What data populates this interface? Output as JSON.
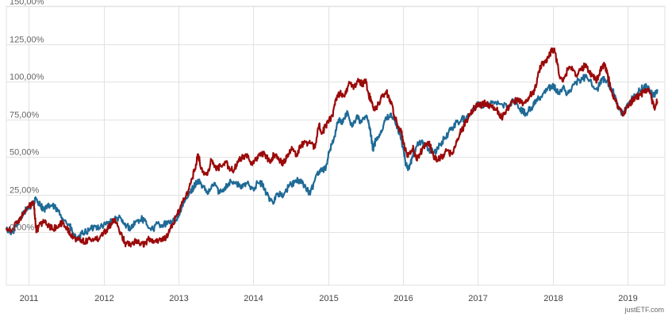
{
  "credit": "justETF.com",
  "colors": {
    "series_0": "#1f6a96",
    "series_1": "#9b0a0a",
    "grid": "#e2e2e2",
    "axis_text": "#555555"
  },
  "chart_data": {
    "type": "line",
    "title": "",
    "xlabel": "",
    "ylabel": "",
    "x_unit": "year",
    "xlim": [
      2010.7,
      2019.5
    ],
    "ylim": [
      -0.35,
      1.5
    ],
    "y_tick_values": [
      0,
      0.25,
      0.5,
      0.75,
      1.0,
      1.25,
      1.5
    ],
    "y_tick_labels": [
      "0,00%",
      "25,00%",
      "50,00%",
      "75,00%",
      "100,00%",
      "125,00%",
      "150,00%"
    ],
    "x_tick_values": [
      2011,
      2012,
      2013,
      2014,
      2015,
      2016,
      2017,
      2018,
      2019
    ],
    "x_tick_labels": [
      "2011",
      "2012",
      "2013",
      "2014",
      "2015",
      "2016",
      "2017",
      "2018",
      "2019"
    ],
    "grid": true,
    "legend": "none",
    "series": [
      {
        "color": "#1f6a96",
        "points": [
          [
            2010.7,
            0.02
          ],
          [
            2010.78,
            0.0
          ],
          [
            2010.86,
            0.06
          ],
          [
            2010.94,
            0.14
          ],
          [
            2011.02,
            0.17
          ],
          [
            2011.06,
            0.2
          ],
          [
            2011.1,
            0.22
          ],
          [
            2011.16,
            0.18
          ],
          [
            2011.2,
            0.15
          ],
          [
            2011.26,
            0.17
          ],
          [
            2011.3,
            0.18
          ],
          [
            2011.36,
            0.16
          ],
          [
            2011.42,
            0.12
          ],
          [
            2011.48,
            0.08
          ],
          [
            2011.55,
            0.04
          ],
          [
            2011.6,
            -0.02
          ],
          [
            2011.66,
            -0.05
          ],
          [
            2011.72,
            0.0
          ],
          [
            2011.8,
            0.01
          ],
          [
            2011.88,
            0.04
          ],
          [
            2011.96,
            0.04
          ],
          [
            2012.05,
            0.06
          ],
          [
            2012.1,
            0.07
          ],
          [
            2012.2,
            0.1
          ],
          [
            2012.28,
            0.05
          ],
          [
            2012.36,
            0.03
          ],
          [
            2012.43,
            0.07
          ],
          [
            2012.52,
            0.09
          ],
          [
            2012.58,
            0.05
          ],
          [
            2012.66,
            0.02
          ],
          [
            2012.72,
            0.06
          ],
          [
            2012.78,
            0.05
          ],
          [
            2012.88,
            0.06
          ],
          [
            2012.96,
            0.08
          ],
          [
            2013.02,
            0.13
          ],
          [
            2013.08,
            0.2
          ],
          [
            2013.14,
            0.25
          ],
          [
            2013.2,
            0.3
          ],
          [
            2013.26,
            0.35
          ],
          [
            2013.32,
            0.3
          ],
          [
            2013.4,
            0.26
          ],
          [
            2013.48,
            0.33
          ],
          [
            2013.55,
            0.26
          ],
          [
            2013.62,
            0.3
          ],
          [
            2013.7,
            0.34
          ],
          [
            2013.78,
            0.32
          ],
          [
            2013.86,
            0.3
          ],
          [
            2013.92,
            0.33
          ],
          [
            2014.0,
            0.29
          ],
          [
            2014.06,
            0.33
          ],
          [
            2014.12,
            0.32
          ],
          [
            2014.18,
            0.25
          ],
          [
            2014.26,
            0.2
          ],
          [
            2014.32,
            0.26
          ],
          [
            2014.4,
            0.24
          ],
          [
            2014.48,
            0.31
          ],
          [
            2014.55,
            0.33
          ],
          [
            2014.62,
            0.35
          ],
          [
            2014.7,
            0.3
          ],
          [
            2014.76,
            0.25
          ],
          [
            2014.84,
            0.38
          ],
          [
            2014.9,
            0.42
          ],
          [
            2014.96,
            0.42
          ],
          [
            2015.02,
            0.54
          ],
          [
            2015.08,
            0.63
          ],
          [
            2015.14,
            0.75
          ],
          [
            2015.2,
            0.73
          ],
          [
            2015.26,
            0.8
          ],
          [
            2015.32,
            0.7
          ],
          [
            2015.38,
            0.77
          ],
          [
            2015.44,
            0.73
          ],
          [
            2015.52,
            0.77
          ],
          [
            2015.56,
            0.68
          ],
          [
            2015.6,
            0.55
          ],
          [
            2015.64,
            0.62
          ],
          [
            2015.7,
            0.66
          ],
          [
            2015.76,
            0.74
          ],
          [
            2015.84,
            0.79
          ],
          [
            2015.9,
            0.72
          ],
          [
            2015.96,
            0.66
          ],
          [
            2016.0,
            0.57
          ],
          [
            2016.04,
            0.45
          ],
          [
            2016.08,
            0.42
          ],
          [
            2016.12,
            0.49
          ],
          [
            2016.18,
            0.57
          ],
          [
            2016.26,
            0.61
          ],
          [
            2016.34,
            0.55
          ],
          [
            2016.42,
            0.53
          ],
          [
            2016.5,
            0.58
          ],
          [
            2016.56,
            0.63
          ],
          [
            2016.64,
            0.68
          ],
          [
            2016.7,
            0.72
          ],
          [
            2016.78,
            0.75
          ],
          [
            2016.86,
            0.76
          ],
          [
            2016.94,
            0.82
          ],
          [
            2017.0,
            0.85
          ],
          [
            2017.1,
            0.85
          ],
          [
            2017.2,
            0.87
          ],
          [
            2017.3,
            0.85
          ],
          [
            2017.4,
            0.83
          ],
          [
            2017.48,
            0.88
          ],
          [
            2017.56,
            0.82
          ],
          [
            2017.64,
            0.79
          ],
          [
            2017.72,
            0.83
          ],
          [
            2017.78,
            0.88
          ],
          [
            2017.84,
            0.9
          ],
          [
            2017.92,
            0.94
          ],
          [
            2018.0,
            0.98
          ],
          [
            2018.04,
            0.95
          ],
          [
            2018.08,
            0.92
          ],
          [
            2018.14,
            0.96
          ],
          [
            2018.2,
            0.92
          ],
          [
            2018.28,
            0.98
          ],
          [
            2018.36,
            1.01
          ],
          [
            2018.44,
            1.03
          ],
          [
            2018.52,
            0.99
          ],
          [
            2018.6,
            0.95
          ],
          [
            2018.66,
            1.02
          ],
          [
            2018.72,
            1.0
          ],
          [
            2018.78,
            0.96
          ],
          [
            2018.82,
            0.92
          ],
          [
            2018.86,
            0.85
          ],
          [
            2018.92,
            0.78
          ],
          [
            2018.96,
            0.8
          ],
          [
            2019.02,
            0.85
          ],
          [
            2019.08,
            0.9
          ],
          [
            2019.14,
            0.93
          ],
          [
            2019.2,
            0.96
          ],
          [
            2019.26,
            0.97
          ],
          [
            2019.32,
            0.92
          ],
          [
            2019.36,
            0.91
          ],
          [
            2019.4,
            0.95
          ]
        ]
      },
      {
        "color": "#9b0a0a",
        "points": [
          [
            2010.7,
            0.03
          ],
          [
            2010.78,
            0.02
          ],
          [
            2010.86,
            0.08
          ],
          [
            2010.94,
            0.13
          ],
          [
            2011.02,
            0.18
          ],
          [
            2011.06,
            0.2
          ],
          [
            2011.08,
            0.12
          ],
          [
            2011.1,
            0.0
          ],
          [
            2011.14,
            0.05
          ],
          [
            2011.2,
            0.07
          ],
          [
            2011.26,
            0.05
          ],
          [
            2011.32,
            0.02
          ],
          [
            2011.4,
            0.05
          ],
          [
            2011.46,
            0.06
          ],
          [
            2011.52,
            0.02
          ],
          [
            2011.56,
            -0.02
          ],
          [
            2011.62,
            -0.04
          ],
          [
            2011.7,
            -0.05
          ],
          [
            2011.76,
            -0.06
          ],
          [
            2011.82,
            -0.04
          ],
          [
            2011.9,
            -0.05
          ],
          [
            2011.96,
            -0.02
          ],
          [
            2012.04,
            0.02
          ],
          [
            2012.1,
            0.06
          ],
          [
            2012.14,
            0.08
          ],
          [
            2012.2,
            0.03
          ],
          [
            2012.26,
            -0.04
          ],
          [
            2012.3,
            -0.08
          ],
          [
            2012.38,
            -0.07
          ],
          [
            2012.44,
            -0.05
          ],
          [
            2012.5,
            -0.08
          ],
          [
            2012.56,
            -0.07
          ],
          [
            2012.62,
            -0.04
          ],
          [
            2012.68,
            -0.06
          ],
          [
            2012.74,
            -0.05
          ],
          [
            2012.8,
            -0.04
          ],
          [
            2012.86,
            -0.02
          ],
          [
            2012.92,
            0.05
          ],
          [
            2012.98,
            0.12
          ],
          [
            2013.04,
            0.18
          ],
          [
            2013.1,
            0.24
          ],
          [
            2013.16,
            0.32
          ],
          [
            2013.22,
            0.42
          ],
          [
            2013.26,
            0.52
          ],
          [
            2013.32,
            0.4
          ],
          [
            2013.38,
            0.38
          ],
          [
            2013.44,
            0.48
          ],
          [
            2013.5,
            0.42
          ],
          [
            2013.56,
            0.44
          ],
          [
            2013.62,
            0.47
          ],
          [
            2013.68,
            0.43
          ],
          [
            2013.74,
            0.41
          ],
          [
            2013.8,
            0.47
          ],
          [
            2013.86,
            0.5
          ],
          [
            2013.92,
            0.52
          ],
          [
            2013.98,
            0.45
          ],
          [
            2014.04,
            0.48
          ],
          [
            2014.1,
            0.53
          ],
          [
            2014.16,
            0.51
          ],
          [
            2014.22,
            0.47
          ],
          [
            2014.28,
            0.52
          ],
          [
            2014.34,
            0.48
          ],
          [
            2014.4,
            0.46
          ],
          [
            2014.46,
            0.52
          ],
          [
            2014.52,
            0.55
          ],
          [
            2014.58,
            0.52
          ],
          [
            2014.64,
            0.58
          ],
          [
            2014.7,
            0.6
          ],
          [
            2014.76,
            0.59
          ],
          [
            2014.82,
            0.56
          ],
          [
            2014.88,
            0.72
          ],
          [
            2014.92,
            0.66
          ],
          [
            2014.96,
            0.7
          ],
          [
            2015.0,
            0.73
          ],
          [
            2015.06,
            0.78
          ],
          [
            2015.1,
            0.88
          ],
          [
            2015.16,
            0.93
          ],
          [
            2015.22,
            0.9
          ],
          [
            2015.28,
            1.0
          ],
          [
            2015.34,
            0.95
          ],
          [
            2015.4,
            1.02
          ],
          [
            2015.46,
            0.98
          ],
          [
            2015.5,
            1.01
          ],
          [
            2015.54,
            0.92
          ],
          [
            2015.58,
            0.86
          ],
          [
            2015.62,
            0.81
          ],
          [
            2015.66,
            0.84
          ],
          [
            2015.72,
            0.9
          ],
          [
            2015.78,
            0.93
          ],
          [
            2015.84,
            0.87
          ],
          [
            2015.9,
            0.75
          ],
          [
            2015.94,
            0.7
          ],
          [
            2015.98,
            0.66
          ],
          [
            2016.02,
            0.57
          ],
          [
            2016.06,
            0.5
          ],
          [
            2016.1,
            0.52
          ],
          [
            2016.14,
            0.56
          ],
          [
            2016.18,
            0.48
          ],
          [
            2016.22,
            0.52
          ],
          [
            2016.28,
            0.57
          ],
          [
            2016.34,
            0.6
          ],
          [
            2016.38,
            0.55
          ],
          [
            2016.42,
            0.5
          ],
          [
            2016.46,
            0.48
          ],
          [
            2016.52,
            0.5
          ],
          [
            2016.58,
            0.54
          ],
          [
            2016.64,
            0.52
          ],
          [
            2016.7,
            0.57
          ],
          [
            2016.76,
            0.66
          ],
          [
            2016.8,
            0.69
          ],
          [
            2016.84,
            0.73
          ],
          [
            2016.9,
            0.79
          ],
          [
            2016.96,
            0.83
          ],
          [
            2017.02,
            0.84
          ],
          [
            2017.1,
            0.86
          ],
          [
            2017.16,
            0.84
          ],
          [
            2017.22,
            0.83
          ],
          [
            2017.28,
            0.8
          ],
          [
            2017.32,
            0.76
          ],
          [
            2017.38,
            0.81
          ],
          [
            2017.44,
            0.86
          ],
          [
            2017.52,
            0.88
          ],
          [
            2017.58,
            0.86
          ],
          [
            2017.64,
            0.86
          ],
          [
            2017.7,
            0.91
          ],
          [
            2017.76,
            0.94
          ],
          [
            2017.8,
            1.03
          ],
          [
            2017.84,
            1.1
          ],
          [
            2017.9,
            1.14
          ],
          [
            2017.94,
            1.16
          ],
          [
            2017.98,
            1.2
          ],
          [
            2018.02,
            1.22
          ],
          [
            2018.06,
            1.13
          ],
          [
            2018.1,
            1.02
          ],
          [
            2018.14,
            1.0
          ],
          [
            2018.2,
            1.08
          ],
          [
            2018.26,
            1.1
          ],
          [
            2018.32,
            1.04
          ],
          [
            2018.38,
            1.08
          ],
          [
            2018.44,
            1.11
          ],
          [
            2018.5,
            1.06
          ],
          [
            2018.54,
            1.04
          ],
          [
            2018.58,
            1.01
          ],
          [
            2018.62,
            1.04
          ],
          [
            2018.66,
            1.1
          ],
          [
            2018.7,
            1.11
          ],
          [
            2018.74,
            1.03
          ],
          [
            2018.78,
            0.95
          ],
          [
            2018.84,
            0.87
          ],
          [
            2018.9,
            0.82
          ],
          [
            2018.94,
            0.78
          ],
          [
            2018.98,
            0.82
          ],
          [
            2019.04,
            0.86
          ],
          [
            2019.1,
            0.89
          ],
          [
            2019.16,
            0.91
          ],
          [
            2019.22,
            0.93
          ],
          [
            2019.28,
            0.94
          ],
          [
            2019.32,
            0.89
          ],
          [
            2019.36,
            0.83
          ],
          [
            2019.4,
            0.87
          ]
        ]
      }
    ]
  }
}
